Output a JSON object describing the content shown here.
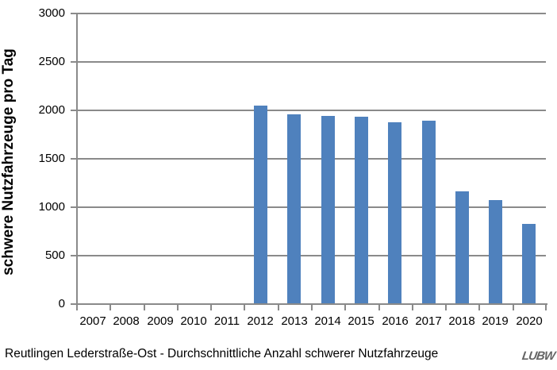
{
  "chart_data": {
    "type": "bar",
    "title": "",
    "xlabel": "",
    "ylabel": "schwere Nutzfahrzeuge pro Tag",
    "categories": [
      "2007",
      "2008",
      "2009",
      "2010",
      "2011",
      "2012",
      "2013",
      "2014",
      "2015",
      "2016",
      "2017",
      "2018",
      "2019",
      "2020"
    ],
    "values": [
      null,
      null,
      null,
      null,
      null,
      2050,
      1960,
      1945,
      1935,
      1875,
      1890,
      1160,
      1070,
      830
    ],
    "ylim": [
      0,
      3000
    ],
    "ytick_step": 500,
    "grid": true,
    "legend": "none",
    "bar_color": "#4F81BD",
    "axis_color": "#8a8a8a"
  },
  "caption": "Reutlingen Lederstraße-Ost - Durchschnittliche Anzahl schwerer Nutzfahrzeuge",
  "logo_text": "LUBW"
}
